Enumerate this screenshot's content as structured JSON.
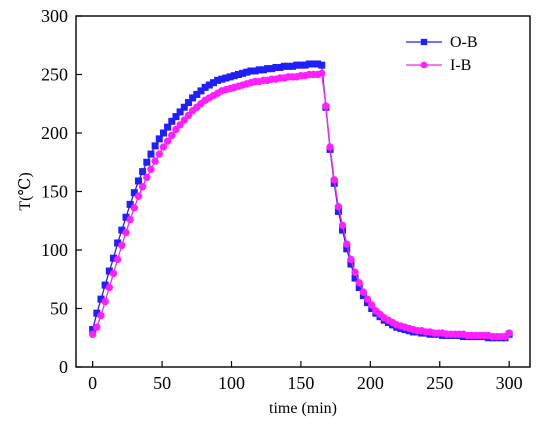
{
  "chart_data": {
    "type": "line",
    "xlabel": "time (min)",
    "ylabel": "T(℃)",
    "xlim": [
      -12,
      315
    ],
    "ylim": [
      0,
      300
    ],
    "xticks": [
      0,
      50,
      100,
      150,
      200,
      250,
      300
    ],
    "yticks": [
      0,
      50,
      100,
      150,
      200,
      250,
      300
    ],
    "grid": false,
    "legend_position": "top-right",
    "series": [
      {
        "name": "O-B",
        "color": "#1f1fff",
        "marker": "square",
        "x": [
          0,
          3,
          6,
          9,
          12,
          15,
          18,
          21,
          24,
          27,
          30,
          33,
          36,
          39,
          42,
          45,
          48,
          51,
          54,
          57,
          60,
          63,
          66,
          69,
          72,
          75,
          78,
          81,
          84,
          87,
          90,
          93,
          96,
          99,
          102,
          105,
          108,
          111,
          114,
          117,
          120,
          123,
          126,
          129,
          132,
          135,
          138,
          141,
          144,
          147,
          150,
          153,
          156,
          159,
          162,
          165,
          168,
          171,
          174,
          177,
          180,
          183,
          186,
          189,
          192,
          195,
          198,
          201,
          204,
          207,
          210,
          213,
          216,
          219,
          222,
          225,
          228,
          231,
          234,
          237,
          240,
          243,
          246,
          249,
          252,
          255,
          258,
          261,
          264,
          267,
          270,
          273,
          276,
          279,
          282,
          285,
          288,
          291,
          294,
          297,
          300
        ],
        "y": [
          32,
          46,
          58,
          70,
          82,
          93,
          106,
          117,
          128,
          139,
          149,
          159,
          167,
          175,
          182,
          189,
          195,
          200,
          205,
          210,
          214,
          218,
          222,
          226,
          230,
          233,
          236,
          239,
          241,
          243,
          245,
          246,
          247,
          248,
          249,
          250,
          251,
          252,
          253,
          253,
          254,
          254,
          255,
          255,
          256,
          256,
          257,
          257,
          257,
          258,
          258,
          258,
          259,
          259,
          259,
          258,
          222,
          186,
          157,
          133,
          117,
          101,
          88,
          76,
          68,
          61,
          55,
          50,
          46,
          43,
          40,
          38,
          36,
          34,
          33,
          32,
          31,
          30,
          30,
          29,
          29,
          28,
          28,
          28,
          27,
          27,
          27,
          27,
          27,
          26,
          26,
          26,
          26,
          26,
          26,
          25,
          25,
          25,
          25,
          25,
          28
        ]
      },
      {
        "name": "I-B",
        "color": "#ff1fff",
        "marker": "circle",
        "x": [
          0,
          3,
          6,
          9,
          12,
          15,
          18,
          21,
          24,
          27,
          30,
          33,
          36,
          39,
          42,
          45,
          48,
          51,
          54,
          57,
          60,
          63,
          66,
          69,
          72,
          75,
          78,
          81,
          84,
          87,
          90,
          93,
          96,
          99,
          102,
          105,
          108,
          111,
          114,
          117,
          120,
          123,
          126,
          129,
          132,
          135,
          138,
          141,
          144,
          147,
          150,
          153,
          156,
          159,
          162,
          165,
          168,
          171,
          174,
          177,
          180,
          183,
          186,
          189,
          192,
          195,
          198,
          201,
          204,
          207,
          210,
          213,
          216,
          219,
          222,
          225,
          228,
          231,
          234,
          237,
          240,
          243,
          246,
          249,
          252,
          255,
          258,
          261,
          264,
          267,
          270,
          273,
          276,
          279,
          282,
          285,
          288,
          291,
          294,
          297,
          300
        ],
        "y": [
          28,
          34,
          44,
          56,
          68,
          80,
          92,
          104,
          115,
          126,
          136,
          146,
          154,
          162,
          169,
          176,
          182,
          188,
          193,
          198,
          203,
          207,
          211,
          215,
          219,
          222,
          225,
          228,
          230,
          232,
          234,
          236,
          237,
          238,
          239,
          240,
          241,
          242,
          243,
          244,
          244,
          245,
          245,
          246,
          246,
          247,
          247,
          248,
          248,
          248,
          249,
          249,
          250,
          250,
          250,
          251,
          223,
          188,
          160,
          137,
          121,
          105,
          92,
          81,
          72,
          64,
          58,
          53,
          48,
          45,
          42,
          40,
          38,
          36,
          35,
          34,
          33,
          32,
          31,
          31,
          30,
          30,
          29,
          29,
          29,
          28,
          28,
          28,
          28,
          28,
          27,
          27,
          27,
          27,
          27,
          27,
          26,
          26,
          26,
          26,
          29
        ]
      }
    ]
  }
}
